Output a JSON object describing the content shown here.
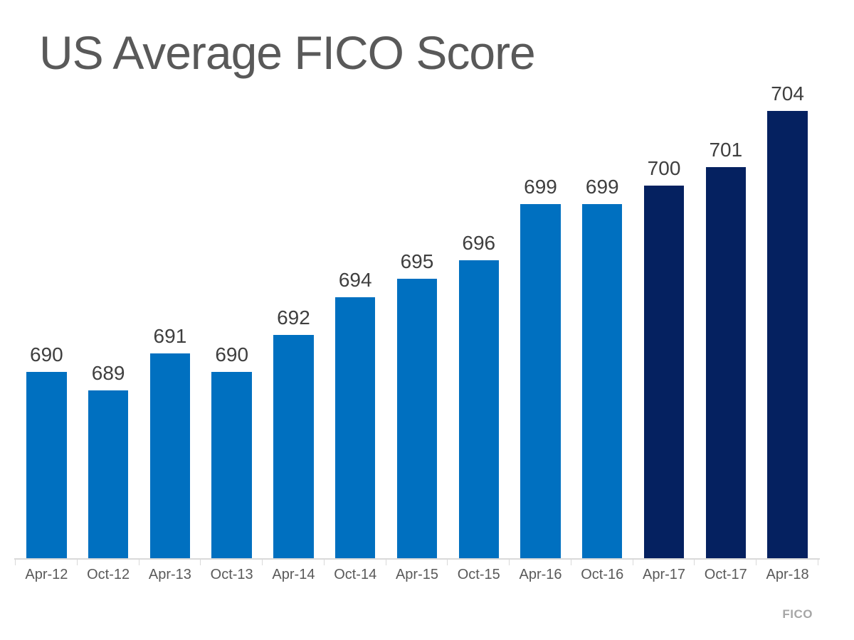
{
  "chart_data": {
    "type": "bar",
    "title": "US Average FICO Score",
    "categories": [
      "Apr-12",
      "Oct-12",
      "Apr-13",
      "Oct-13",
      "Apr-14",
      "Oct-14",
      "Apr-15",
      "Oct-15",
      "Apr-16",
      "Oct-16",
      "Apr-17",
      "Oct-17",
      "Apr-18"
    ],
    "values": [
      690,
      689,
      691,
      690,
      692,
      694,
      695,
      696,
      699,
      699,
      700,
      701,
      704
    ],
    "highlight_categories": [
      "Apr-17",
      "Oct-17",
      "Apr-18"
    ],
    "value_labels": true,
    "grid": false,
    "legend": "none",
    "xlabel": "",
    "ylabel": "",
    "ylim": [
      680,
      705
    ],
    "source": "FICO",
    "colors": {
      "bar_default": "#0070C0",
      "bar_highlight": "#052160",
      "title": "#595959",
      "value_label": "#3F3F3F",
      "axis_label": "#595959",
      "axis_line": "#D9D9D9",
      "source": "#A6A6A6",
      "background": "#FFFFFF"
    }
  }
}
